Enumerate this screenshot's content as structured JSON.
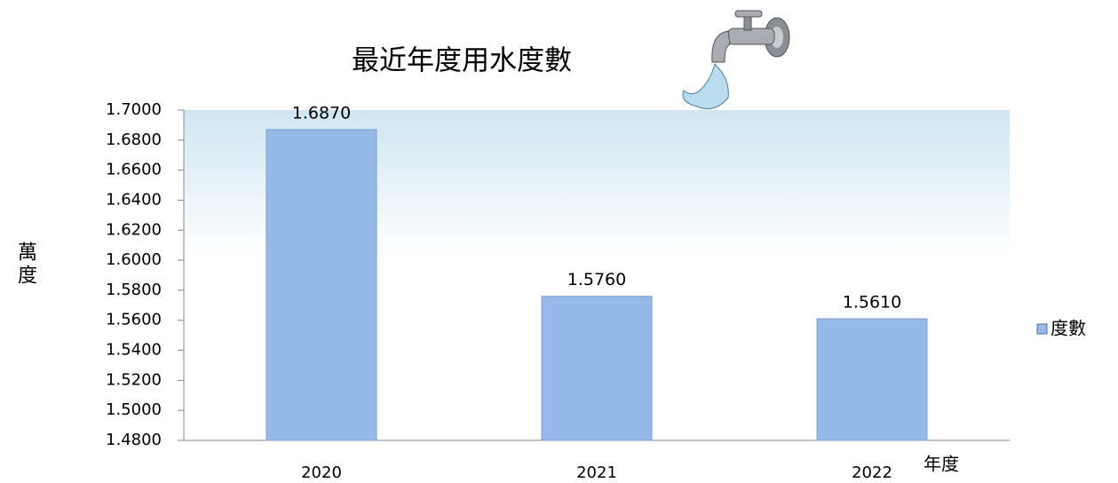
{
  "chart_data": {
    "type": "bar",
    "title": "最近年度用水度數",
    "y_label": "萬度",
    "x_label": "年度",
    "categories": [
      "2020",
      "2021",
      "2022"
    ],
    "series": [
      {
        "name": "度數",
        "color": "#95b9e8",
        "values": [
          1.687,
          1.576,
          1.561
        ],
        "value_labels": [
          "1.6870",
          "1.5760",
          "1.5610"
        ]
      }
    ],
    "ylim": [
      1.48,
      1.7
    ],
    "yticks": [
      {
        "value": 1.48,
        "label": "1.4800"
      },
      {
        "value": 1.5,
        "label": "1.5000"
      },
      {
        "value": 1.52,
        "label": "1.5200"
      },
      {
        "value": 1.54,
        "label": "1.5400"
      },
      {
        "value": 1.56,
        "label": "1.5600"
      },
      {
        "value": 1.58,
        "label": "1.5800"
      },
      {
        "value": 1.6,
        "label": "1.6000"
      },
      {
        "value": 1.62,
        "label": "1.6200"
      },
      {
        "value": 1.64,
        "label": "1.6400"
      },
      {
        "value": 1.66,
        "label": "1.6600"
      },
      {
        "value": 1.68,
        "label": "1.6800"
      },
      {
        "value": 1.7,
        "label": "1.7000"
      }
    ],
    "legend": "right"
  }
}
